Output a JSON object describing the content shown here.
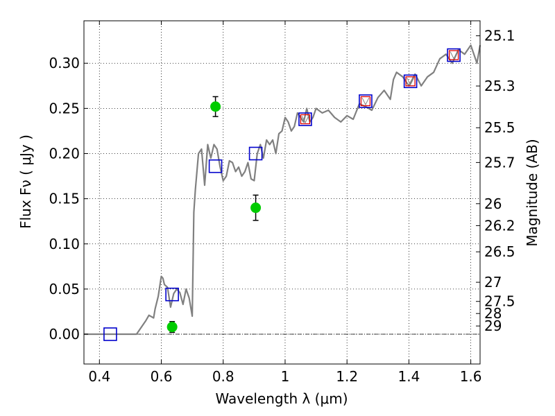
{
  "chart_data": {
    "type": "line",
    "xlabel": "Wavelength  λ (μm)",
    "ylabel": "Flux  Fν  ( μJy )",
    "y2label": "Magnitude (AB)",
    "xlim": [
      0.35,
      1.63
    ],
    "ylim": [
      -0.033,
      0.347
    ],
    "grid": true,
    "x_ticks": [
      0.4,
      0.6,
      0.8,
      1.0,
      1.2,
      1.4,
      1.6
    ],
    "x_tick_labels": [
      "0.4",
      "0.6",
      "0.8",
      "1",
      "1.2",
      "1.4",
      "1.6"
    ],
    "y_ticks": [
      0.0,
      0.05,
      0.1,
      0.15,
      0.2,
      0.25,
      0.3
    ],
    "y_tick_labels": [
      "0.00",
      "0.05",
      "0.10",
      "0.15",
      "0.20",
      "0.25",
      "0.30"
    ],
    "mag_ticks": [
      {
        "label": "25.1",
        "flux": 0.3304
      },
      {
        "label": "25.3",
        "flux": 0.2748
      },
      {
        "label": "25.5",
        "flux": 0.2286
      },
      {
        "label": "25.7",
        "flux": 0.1901
      },
      {
        "label": "26",
        "flux": 0.1445
      },
      {
        "label": "26.2",
        "flux": 0.1202
      },
      {
        "label": "26.5",
        "flux": 0.0912
      },
      {
        "label": "27",
        "flux": 0.0575
      },
      {
        "label": "27.5",
        "flux": 0.0363
      },
      {
        "label": "28",
        "flux": 0.0229
      },
      {
        "label": "29",
        "flux": 0.0091
      }
    ],
    "series": [
      {
        "style": "model-line",
        "color": "#808080",
        "x": [
          0.35,
          0.52,
          0.55,
          0.56,
          0.575,
          0.58,
          0.59,
          0.6,
          0.605,
          0.61,
          0.62,
          0.63,
          0.64,
          0.65,
          0.66,
          0.67,
          0.68,
          0.69,
          0.7,
          0.705,
          0.71,
          0.72,
          0.73,
          0.74,
          0.75,
          0.76,
          0.77,
          0.78,
          0.79,
          0.8,
          0.81,
          0.82,
          0.83,
          0.84,
          0.85,
          0.86,
          0.87,
          0.88,
          0.89,
          0.9,
          0.91,
          0.92,
          0.93,
          0.94,
          0.95,
          0.96,
          0.97,
          0.98,
          0.99,
          1.0,
          1.01,
          1.02,
          1.03,
          1.04,
          1.05,
          1.06,
          1.07,
          1.08,
          1.09,
          1.1,
          1.12,
          1.14,
          1.16,
          1.18,
          1.2,
          1.22,
          1.24,
          1.26,
          1.28,
          1.3,
          1.32,
          1.34,
          1.35,
          1.36,
          1.38,
          1.4,
          1.42,
          1.44,
          1.46,
          1.48,
          1.5,
          1.52,
          1.54,
          1.56,
          1.58,
          1.6,
          1.62,
          1.63
        ],
        "y": [
          0.0,
          0.0,
          0.015,
          0.021,
          0.018,
          0.028,
          0.042,
          0.064,
          0.062,
          0.055,
          0.052,
          0.03,
          0.045,
          0.05,
          0.046,
          0.033,
          0.05,
          0.04,
          0.02,
          0.135,
          0.16,
          0.2,
          0.205,
          0.165,
          0.21,
          0.195,
          0.21,
          0.205,
          0.185,
          0.17,
          0.175,
          0.192,
          0.19,
          0.18,
          0.185,
          0.175,
          0.18,
          0.19,
          0.172,
          0.17,
          0.2,
          0.21,
          0.195,
          0.215,
          0.21,
          0.215,
          0.2,
          0.222,
          0.225,
          0.24,
          0.235,
          0.225,
          0.23,
          0.245,
          0.24,
          0.235,
          0.25,
          0.235,
          0.24,
          0.25,
          0.245,
          0.248,
          0.24,
          0.235,
          0.242,
          0.238,
          0.255,
          0.252,
          0.248,
          0.262,
          0.27,
          0.26,
          0.282,
          0.29,
          0.285,
          0.275,
          0.288,
          0.275,
          0.285,
          0.29,
          0.305,
          0.31,
          0.3,
          0.315,
          0.31,
          0.32,
          0.3,
          0.32
        ]
      },
      {
        "style": "model-photometry-squares",
        "color": "#0000cc",
        "x": [
          0.435,
          0.635,
          0.775,
          0.905,
          1.065,
          1.26,
          1.405,
          1.545
        ],
        "y": [
          0.0,
          0.044,
          0.186,
          0.2,
          0.238,
          0.258,
          0.28,
          0.309
        ]
      },
      {
        "style": "upper-limit-squares",
        "color": "#dd0000",
        "x": [
          1.065,
          1.26,
          1.405,
          1.545
        ],
        "y": [
          0.238,
          0.258,
          0.28,
          0.309
        ]
      },
      {
        "style": "observed-points",
        "color": "#00cc00",
        "x": [
          0.635,
          0.775,
          0.905
        ],
        "y": [
          0.008,
          0.252,
          0.14
        ],
        "yerr": [
          0.006,
          0.011,
          0.014
        ]
      }
    ]
  }
}
